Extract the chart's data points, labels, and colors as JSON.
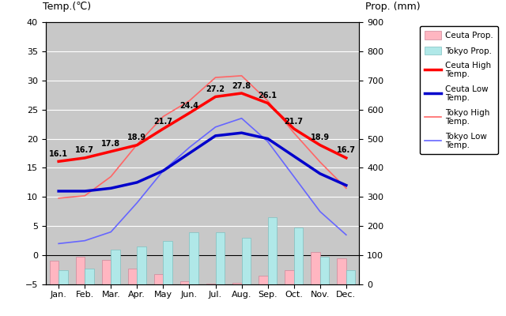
{
  "months": [
    "Jan.",
    "Feb.",
    "Mar.",
    "Apr.",
    "May",
    "Jun.",
    "Jul.",
    "Aug.",
    "Sep.",
    "Oct.",
    "Nov.",
    "Dec."
  ],
  "ceuta_high": [
    16.1,
    16.7,
    17.8,
    18.9,
    21.7,
    24.4,
    27.2,
    27.8,
    26.1,
    21.7,
    18.9,
    16.7
  ],
  "ceuta_low": [
    11.0,
    11.0,
    11.5,
    12.5,
    14.5,
    17.5,
    20.5,
    21.0,
    20.0,
    17.0,
    14.0,
    12.0
  ],
  "tokyo_high": [
    9.8,
    10.2,
    13.5,
    19.0,
    23.8,
    26.5,
    30.5,
    30.8,
    26.5,
    21.0,
    16.0,
    11.5
  ],
  "tokyo_low": [
    2.0,
    2.5,
    4.0,
    9.0,
    14.5,
    18.5,
    22.0,
    23.5,
    19.5,
    13.5,
    7.5,
    3.5
  ],
  "ceuta_precip_mm": [
    80,
    95,
    85,
    55,
    35,
    10,
    2,
    5,
    30,
    50,
    110,
    90
  ],
  "tokyo_precip_mm": [
    50,
    55,
    120,
    130,
    150,
    180,
    180,
    160,
    230,
    195,
    95,
    50
  ],
  "temp_ylim_min": -5,
  "temp_ylim_max": 40,
  "precip_ylim_min": 0,
  "precip_ylim_max": 900,
  "bg_color": "#c8c8c8",
  "ceuta_high_color": "#ff0000",
  "ceuta_low_color": "#0000cc",
  "tokyo_high_color": "#ff6666",
  "tokyo_low_color": "#6666ff",
  "ceuta_bar_color": "#ffb6c1",
  "tokyo_bar_color": "#b0e8e8",
  "grid_color": "#ffffff",
  "label_temp": "Temp.(℃)",
  "label_precip": "Prop. (mm)",
  "legend_labels": [
    "Ceuta Prop.",
    "Tokyo Prop.",
    "Ceuta High\nTemp.",
    "Ceuta Low\nTemp.",
    "Tokyo High\nTemp.",
    "Tokyo Low\nTemp."
  ]
}
